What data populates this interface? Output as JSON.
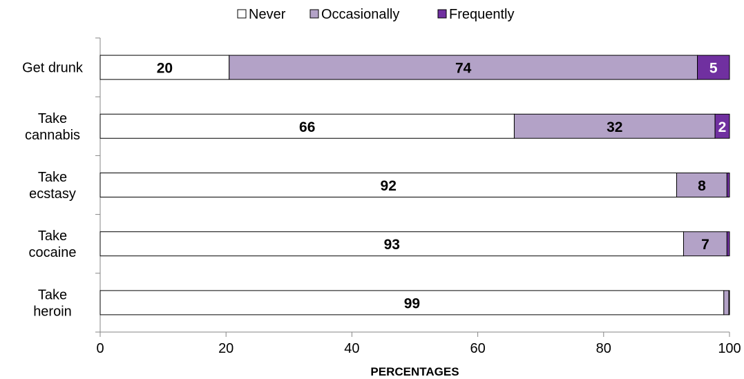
{
  "chart_data": {
    "type": "bar",
    "orientation": "horizontal",
    "stacked": true,
    "categories": [
      [
        "Get drunk"
      ],
      [
        "Take",
        "cannabis"
      ],
      [
        "Take",
        "ecstasy"
      ],
      [
        "Take",
        "cocaine"
      ],
      [
        "Take",
        "heroin"
      ]
    ],
    "series": [
      {
        "name": "Never",
        "values": [
          20.5,
          65.8,
          91.6,
          92.7,
          99.1
        ],
        "labels": [
          "20",
          "66",
          "92",
          "93",
          "99"
        ],
        "color": "#ffffff",
        "label_color": "#000000"
      },
      {
        "name": "Occasionally",
        "values": [
          74.4,
          31.9,
          8.0,
          6.9,
          0.8
        ],
        "labels": [
          "74",
          "32",
          "8",
          "7",
          ""
        ],
        "color": "#b3a2c7",
        "label_color": "#000000"
      },
      {
        "name": "Frequently",
        "values": [
          5.1,
          2.3,
          0.4,
          0.4,
          0.1
        ],
        "labels": [
          "5",
          "2",
          "",
          "",
          ""
        ],
        "color": "#7030a0",
        "label_color": "#ffffff"
      }
    ],
    "xlabel": "PERCENTAGES",
    "ylabel": "",
    "xlim": [
      0,
      100
    ],
    "xticks": [
      0,
      20,
      40,
      60,
      80,
      100
    ],
    "grid": false,
    "legend": "top-center"
  }
}
